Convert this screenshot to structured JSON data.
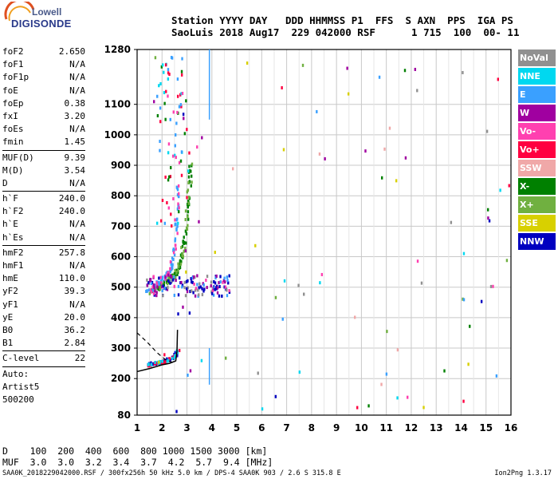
{
  "logo": {
    "line1": "Lowell",
    "line2": "DIGISONDE"
  },
  "header": {
    "line1": "Station YYYY DAY   DDD HHMMSS P1  FFS  S AXN  PPS  IGA PS",
    "line2": "SaoLuis 2018 Aug17  229 042000 RSF      1 715  100  00- 11"
  },
  "parameters": [
    {
      "key": "foF2",
      "value": "2.650"
    },
    {
      "key": "foF1",
      "value": "N/A"
    },
    {
      "key": "foF1p",
      "value": "N/A"
    },
    {
      "key": "foE",
      "value": "N/A"
    },
    {
      "key": "foEp",
      "value": "0.38"
    },
    {
      "key": "fxI",
      "value": "3.20"
    },
    {
      "key": "foEs",
      "value": "N/A"
    },
    {
      "key": "fmin",
      "value": "1.45"
    },
    {
      "key": "MUF(D)",
      "value": "9.39",
      "sep": true
    },
    {
      "key": "M(D)",
      "value": "3.54"
    },
    {
      "key": "D",
      "value": "N/A"
    },
    {
      "key": "h`F",
      "value": "240.0",
      "sep": true
    },
    {
      "key": "h`F2",
      "value": "240.0"
    },
    {
      "key": "h`E",
      "value": "N/A"
    },
    {
      "key": "h`Es",
      "value": "N/A"
    },
    {
      "key": "hmF2",
      "value": "257.8",
      "sep": true
    },
    {
      "key": "hmF1",
      "value": "N/A"
    },
    {
      "key": "hmE",
      "value": "110.0"
    },
    {
      "key": "yF2",
      "value": "39.3"
    },
    {
      "key": "yF1",
      "value": "N/A"
    },
    {
      "key": "yE",
      "value": "20.0"
    },
    {
      "key": "B0",
      "value": "36.2"
    },
    {
      "key": "B1",
      "value": "2.84"
    },
    {
      "key": "C-level",
      "value": "22",
      "sep": true
    }
  ],
  "auto": {
    "line1": "Auto:",
    "line2": "Artist5",
    "line3": "500200"
  },
  "legend": [
    {
      "label": "NoVal",
      "color": "#909090"
    },
    {
      "label": "NNE",
      "color": "#00d8f0"
    },
    {
      "label": "E",
      "color": "#3aa0ff"
    },
    {
      "label": "W",
      "color": "#a000a0"
    },
    {
      "label": "Vo-",
      "color": "#ff40b0"
    },
    {
      "label": "Vo+",
      "color": "#ff0040"
    },
    {
      "label": "SSW",
      "color": "#f0a8a8"
    },
    {
      "label": "X-",
      "color": "#008000"
    },
    {
      "label": "X+",
      "color": "#70b040"
    },
    {
      "label": "SSE",
      "color": "#d8d000"
    },
    {
      "label": "NNW",
      "color": "#0000c0"
    }
  ],
  "chart_data": {
    "type": "scatter",
    "title": "",
    "xlabel": "",
    "ylabel": "",
    "xlim": [
      1,
      16
    ],
    "ylim": [
      80,
      1280
    ],
    "x_ticks": [
      1,
      2,
      3,
      4,
      5,
      6,
      7,
      8,
      9,
      10,
      11,
      12,
      13,
      14,
      15,
      16
    ],
    "y_ticks": [
      80,
      200,
      300,
      400,
      500,
      600,
      700,
      800,
      900,
      1000,
      1100,
      1280
    ],
    "grid": true,
    "profile_line": {
      "x": [
        1.0,
        1.5,
        2.0,
        2.3,
        2.55,
        2.6,
        2.62
      ],
      "y": [
        223,
        233,
        245,
        250,
        258,
        290,
        360
      ]
    },
    "profile_dashed": {
      "x": [
        1.0,
        1.4,
        1.8,
        2.2,
        2.5
      ],
      "y": [
        350,
        320,
        285,
        258,
        252
      ]
    },
    "x_trace": {
      "x": [
        1.5,
        1.9,
        2.3,
        2.55,
        2.7,
        2.85,
        3.0,
        3.1,
        3.15
      ],
      "y": [
        480,
        500,
        525,
        545,
        570,
        620,
        700,
        800,
        900
      ]
    },
    "o_trace": {
      "x": [
        1.4,
        1.8,
        2.1,
        2.35,
        2.5,
        2.6,
        2.65
      ],
      "y": [
        490,
        510,
        530,
        560,
        620,
        720,
        850
      ]
    },
    "low_trace": {
      "x": [
        1.4,
        1.8,
        2.2,
        2.5,
        2.7
      ],
      "y": [
        245,
        250,
        258,
        270,
        300
      ]
    }
  },
  "footer": {
    "line1": "D    100  200  400  600  800 1000 1500 3000 [km]",
    "line2": "MUF  3.0  3.0  3.2  3.4  3.7  4.2  5.7  9.4 [MHz]"
  },
  "bottom": {
    "info": "SAA0K_2018229042000.RSF / 300fx256h 50 kHz 5.0 km / DPS-4 SAA0K 903 / 2.6 S 315.8 E",
    "version": "Ion2Png 1.3.17"
  }
}
